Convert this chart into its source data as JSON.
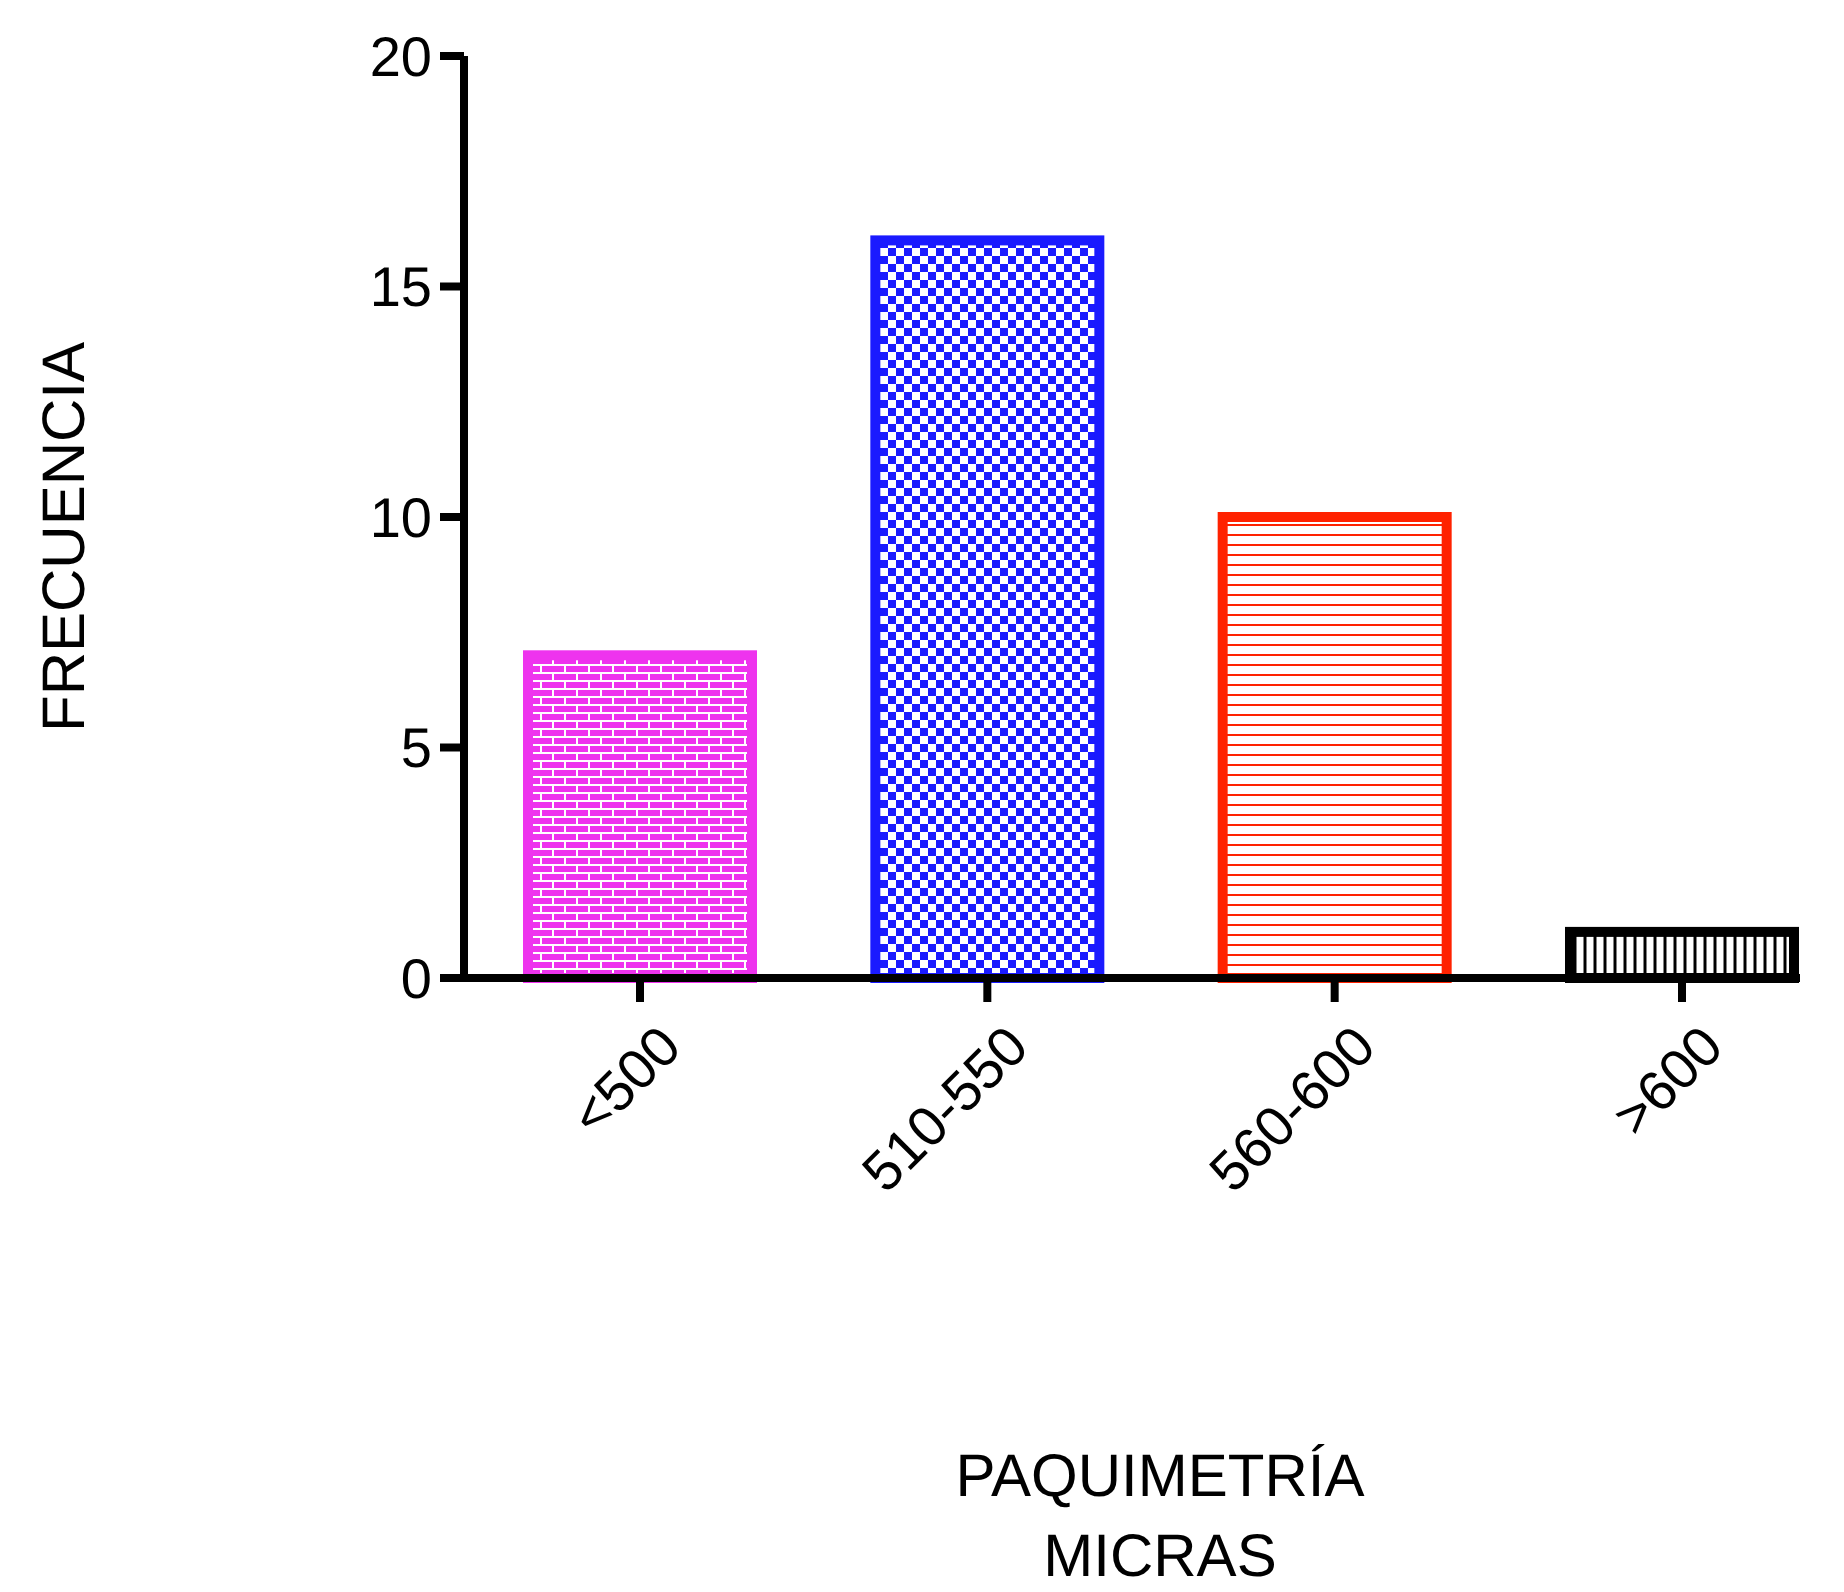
{
  "chart_data": {
    "type": "bar",
    "xlabel": "PAQUIMETRÍA\nMICRAS",
    "ylabel": "FRECUENCIA",
    "categories": [
      "<500",
      "510-550",
      "560-600",
      ">600"
    ],
    "values": [
      7,
      16,
      10,
      1
    ],
    "colors": [
      "#ee33ee",
      "#1a1aff",
      "#ff2200",
      "#000000"
    ],
    "ylim": [
      0,
      20
    ],
    "yticks": [
      0,
      5,
      10,
      15,
      20
    ],
    "grid": false
  }
}
